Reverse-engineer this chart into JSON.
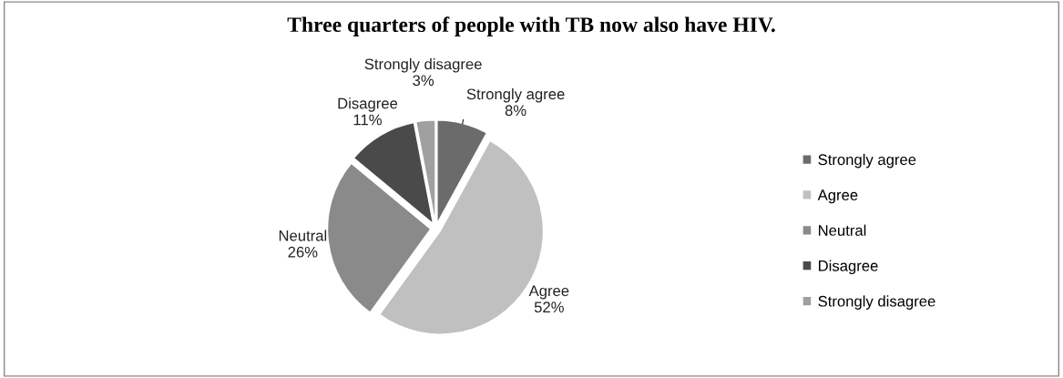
{
  "chart_data": {
    "type": "pie",
    "title": "Three quarters of people with TB now also have HIV.",
    "categories": [
      "Strongly agree",
      "Agree",
      "Neutral",
      "Disagree",
      "Strongly disagree"
    ],
    "values": [
      8,
      52,
      26,
      11,
      3
    ],
    "value_labels": [
      "8%",
      "52%",
      "26%",
      "11%",
      "3%"
    ],
    "colors": [
      "#6b6b6b",
      "#c0c0c0",
      "#8a8a8a",
      "#4a4a4a",
      "#a0a0a0"
    ],
    "legend": "right"
  }
}
